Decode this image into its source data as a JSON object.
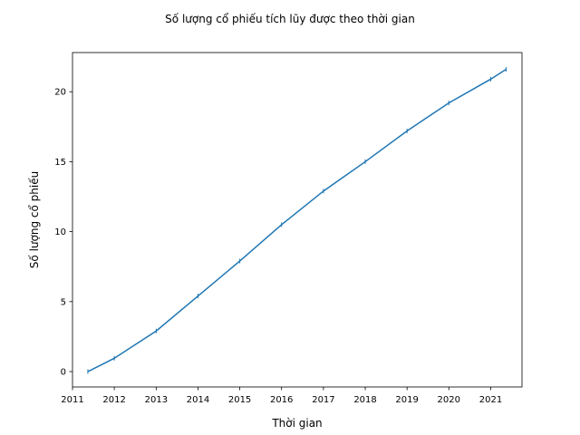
{
  "chart_data": {
    "type": "line",
    "title": "Số lượng cổ phiếu tích lũy được theo thời gian",
    "xlabel": "Thời gian",
    "ylabel": "Số lượng cổ phiếu",
    "xlim": [
      "2011-01-01",
      "2021-10-01"
    ],
    "ylim": [
      -1.1,
      22.8
    ],
    "x_ticks": [
      "2011",
      "2012",
      "2013",
      "2014",
      "2015",
      "2016",
      "2017",
      "2018",
      "2019",
      "2020",
      "2021"
    ],
    "y_ticks": [
      0,
      5,
      10,
      15,
      20
    ],
    "grid": false,
    "legend": "none",
    "marker": "|",
    "colors": {
      "series": "#1f77b4",
      "axis": "#000000"
    },
    "series": [
      {
        "x": [
          "2011-05-15",
          "2012-01-01",
          "2013-01-01",
          "2014-01-01",
          "2015-01-01",
          "2016-01-01",
          "2017-01-01",
          "2018-01-01",
          "2019-01-01",
          "2020-01-01",
          "2021-01-01",
          "2021-05-15"
        ],
        "y": [
          0.0,
          0.95,
          2.9,
          5.4,
          7.9,
          10.5,
          12.9,
          15.0,
          17.2,
          19.2,
          20.9,
          21.6
        ]
      }
    ]
  }
}
